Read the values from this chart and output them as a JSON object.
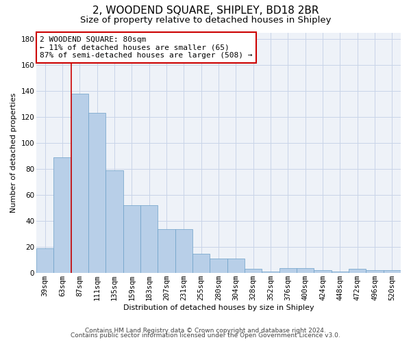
{
  "title": "2, WOODEND SQUARE, SHIPLEY, BD18 2BR",
  "subtitle": "Size of property relative to detached houses in Shipley",
  "xlabel": "Distribution of detached houses by size in Shipley",
  "ylabel": "Number of detached properties",
  "footnote1": "Contains HM Land Registry data © Crown copyright and database right 2024.",
  "footnote2": "Contains public sector information licensed under the Open Government Licence v3.0.",
  "categories": [
    "39sqm",
    "63sqm",
    "87sqm",
    "111sqm",
    "135sqm",
    "159sqm",
    "183sqm",
    "207sqm",
    "231sqm",
    "255sqm",
    "280sqm",
    "304sqm",
    "328sqm",
    "352sqm",
    "376sqm",
    "400sqm",
    "424sqm",
    "448sqm",
    "472sqm",
    "496sqm",
    "520sqm"
  ],
  "values": [
    19,
    89,
    138,
    123,
    79,
    52,
    52,
    34,
    34,
    15,
    11,
    11,
    3,
    1,
    4,
    4,
    2,
    1,
    3,
    2,
    2
  ],
  "bar_color": "#b8cfe8",
  "bar_edge_color": "#6b9fc8",
  "bar_edge_width": 0.5,
  "ylim": [
    0,
    185
  ],
  "yticks": [
    0,
    20,
    40,
    60,
    80,
    100,
    120,
    140,
    160,
    180
  ],
  "vline_x": 1.5,
  "vline_color": "#cc0000",
  "annotation_text": "2 WOODEND SQUARE: 80sqm\n← 11% of detached houses are smaller (65)\n87% of semi-detached houses are larger (508) →",
  "annotation_box_color": "#ffffff",
  "annotation_box_edge_color": "#cc0000",
  "grid_color": "#c8d4e8",
  "bg_color": "#eef2f8",
  "title_fontsize": 11,
  "subtitle_fontsize": 9.5,
  "axis_label_fontsize": 8,
  "tick_fontsize": 7.5,
  "annotation_fontsize": 8,
  "footnote_fontsize": 6.5
}
